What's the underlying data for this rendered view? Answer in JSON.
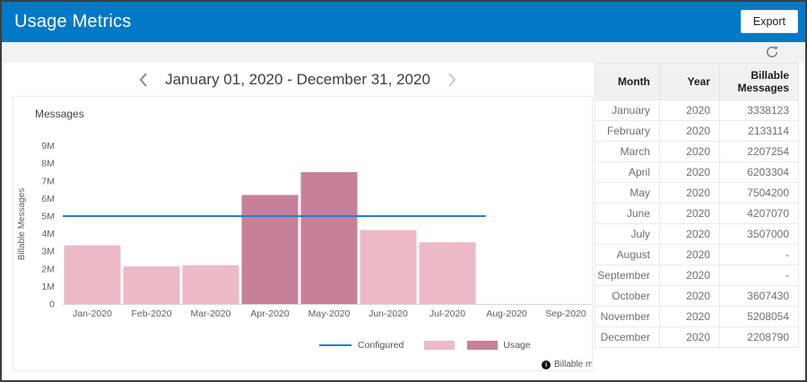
{
  "header": {
    "title": "Usage Metrics",
    "export_label": "Export"
  },
  "date_nav": {
    "range": "January 01, 2020 - December 31, 2020"
  },
  "chart_data": {
    "type": "bar",
    "title": "Messages",
    "ylabel": "Billable Messages",
    "categories": [
      "Jan-2020",
      "Feb-2020",
      "Mar-2020",
      "Apr-2020",
      "May-2020",
      "Jun-2020",
      "Jul-2020",
      "Aug-2020",
      "Sep-2020"
    ],
    "series": [
      {
        "name": "Usage",
        "values": [
          3338123,
          2133114,
          2207254,
          6203304,
          7504200,
          4207070,
          3507000,
          null,
          null
        ]
      }
    ],
    "reference_line": {
      "name": "Configured",
      "value": 5000000
    },
    "ylim": [
      0,
      9000000
    ],
    "ytick_labels": [
      "0",
      "1M",
      "2M",
      "3M",
      "4M",
      "5M",
      "6M",
      "7M",
      "8M",
      "9M"
    ],
    "grid": false,
    "legend": {
      "position": "bottom",
      "entries": [
        "Configured",
        "Usage"
      ]
    },
    "colors": {
      "usage_below": "#edb9c6",
      "usage_above": "#c6809a",
      "configured": "#2380d2",
      "axis_text": "#5f5f5f",
      "baseline": "#d8d8d8"
    },
    "note": "Billable mes"
  },
  "table": {
    "columns": [
      "Month",
      "Year",
      "Billable Messages"
    ],
    "rows": [
      [
        "January",
        "2020",
        "3338123"
      ],
      [
        "February",
        "2020",
        "2133114"
      ],
      [
        "March",
        "2020",
        "2207254"
      ],
      [
        "April",
        "2020",
        "6203304"
      ],
      [
        "May",
        "2020",
        "7504200"
      ],
      [
        "June",
        "2020",
        "4207070"
      ],
      [
        "July",
        "2020",
        "3507000"
      ],
      [
        "August",
        "2020",
        "-"
      ],
      [
        "September",
        "2020",
        "-"
      ],
      [
        "October",
        "2020",
        "3607430"
      ],
      [
        "November",
        "2020",
        "5208054"
      ],
      [
        "December",
        "2020",
        "2208790"
      ]
    ]
  }
}
